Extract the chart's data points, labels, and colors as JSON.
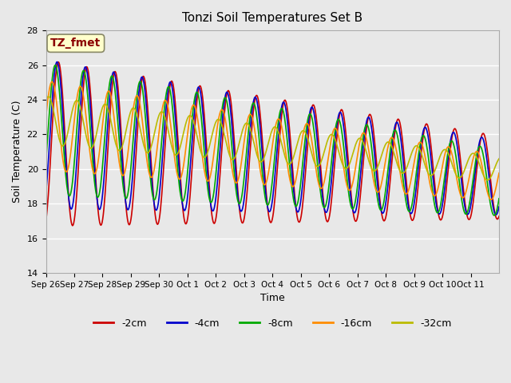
{
  "title": "Tonzi Soil Temperatures Set B",
  "xlabel": "Time",
  "ylabel": "Soil Temperature (C)",
  "ylim": [
    14,
    28
  ],
  "yticks": [
    14,
    16,
    18,
    20,
    22,
    24,
    26,
    28
  ],
  "annotation_text": "TZ_fmet",
  "annotation_color": "#8B0000",
  "annotation_bg": "#FFFFCC",
  "series": [
    {
      "label": "-2cm",
      "color": "#CC0000"
    },
    {
      "label": "-4cm",
      "color": "#0000CC"
    },
    {
      "label": "-8cm",
      "color": "#00AA00"
    },
    {
      "label": "-16cm",
      "color": "#FF8C00"
    },
    {
      "label": "-32cm",
      "color": "#BBBB00"
    }
  ],
  "xtick_labels": [
    "Sep 26",
    "Sep 27",
    "Sep 28",
    "Sep 29",
    "Sep 30",
    "Oct 1",
    "Oct 2",
    "Oct 3",
    "Oct 4",
    "Oct 5",
    "Oct 6",
    "Oct 7",
    "Oct 8",
    "Oct 9",
    "Oct 10",
    "Oct 11"
  ],
  "n_days": 16,
  "bg_color": "#E8E8E8",
  "grid_color": "#FFFFFF"
}
